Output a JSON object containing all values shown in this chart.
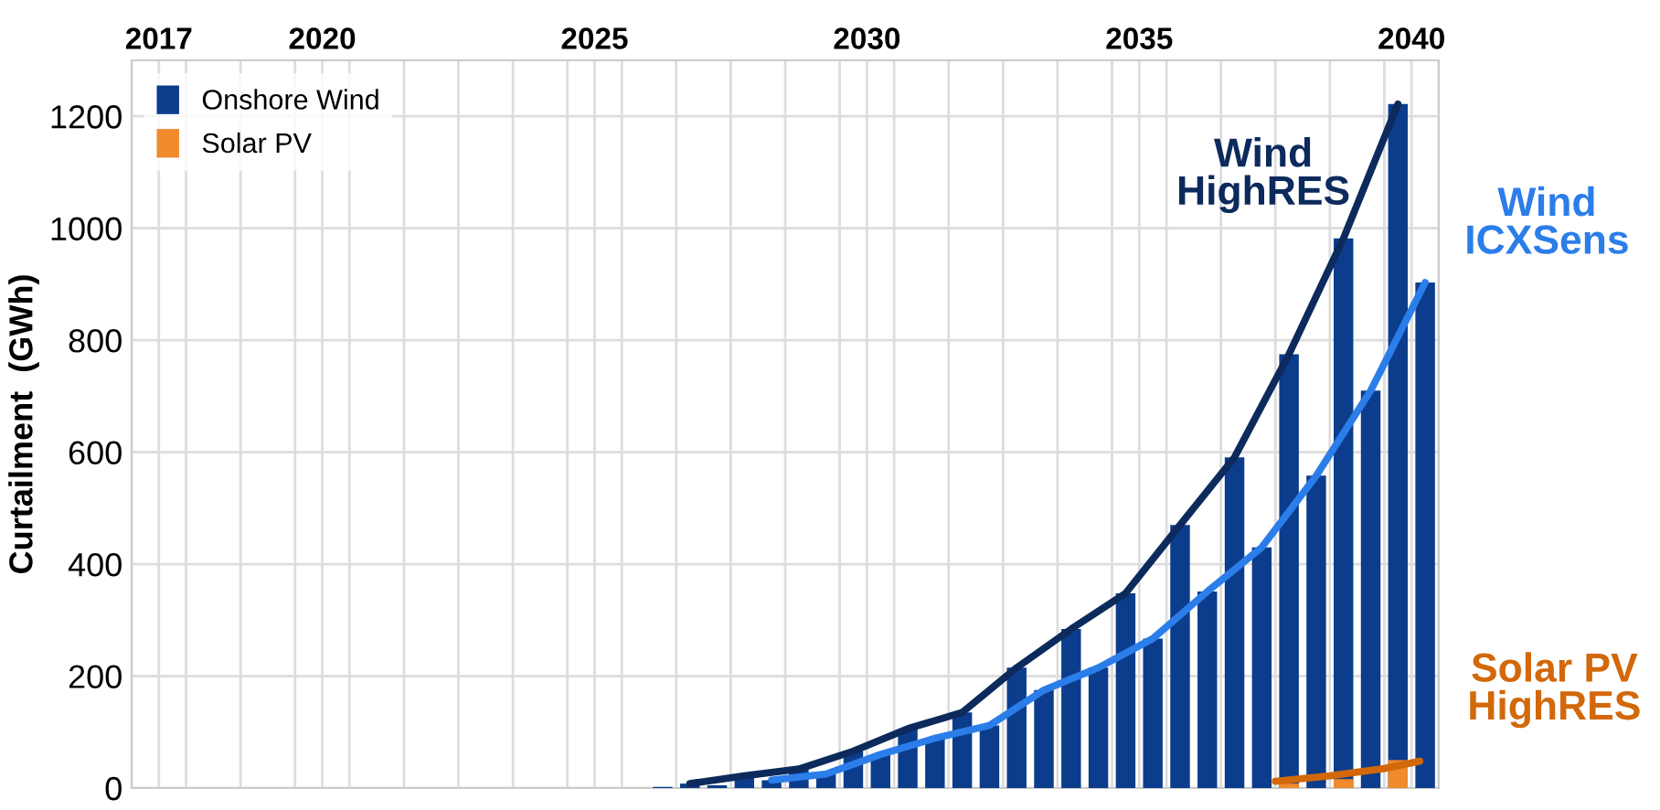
{
  "chart_data": {
    "type": "bar",
    "ylabel": "Curtailment  (GWh)",
    "xlim": [
      2016.5,
      2040.5
    ],
    "xticks": [
      2017,
      2020,
      2025,
      2030,
      2035,
      2040
    ],
    "ylim": [
      0,
      1300
    ],
    "yticks": [
      0,
      200,
      400,
      600,
      800,
      1000,
      1200
    ],
    "grid": true,
    "legend": "top left",
    "series": [
      {
        "name": "Onshore Wind",
        "color": "#0b3d8c",
        "x": [
          2025.75,
          2026.75,
          2027.75,
          2028.75,
          2029.75,
          2030.75,
          2031.75,
          2032.75,
          2033.75,
          2034.75,
          2035.75,
          2036.75,
          2037.75,
          2038.75,
          2039.75
        ],
        "values": [
          0,
          8,
          22,
          34,
          66,
          106,
          135,
          215,
          284,
          348,
          470,
          591,
          775,
          982,
          1222
        ]
      },
      {
        "color": "#0b3d8c",
        "x": [
          2026.25,
          2027.25,
          2028.25,
          2029.25,
          2030.25,
          2031.25,
          2032.25,
          2033.25,
          2034.25,
          2035.25,
          2036.25,
          2037.25,
          2038.25,
          2039.25,
          2040.25
        ],
        "values": [
          2,
          5,
          14,
          25,
          60,
          89,
          112,
          175,
          215,
          267,
          351,
          430,
          558,
          710,
          903
        ]
      },
      {
        "name": "Solar PV",
        "color": "#f08a2c",
        "x": [
          2037.75,
          2038.75,
          2039.75
        ],
        "values": [
          8,
          16,
          50
        ]
      },
      {
        "type": "line",
        "name": "Wind HighRES",
        "color": "#0d2a5c",
        "x": [
          2026.75,
          2027.75,
          2028.75,
          2029.75,
          2030.75,
          2031.75,
          2032.75,
          2033.75,
          2034.75,
          2035.75,
          2036.75,
          2037.75,
          2038.75,
          2039.75
        ],
        "values": [
          8,
          22,
          34,
          66,
          106,
          135,
          215,
          284,
          348,
          470,
          591,
          775,
          982,
          1222
        ]
      },
      {
        "type": "line",
        "name": "Wind ICXSens",
        "color": "#2b7de9",
        "x": [
          2028.25,
          2029.25,
          2030.25,
          2031.25,
          2032.25,
          2033.25,
          2034.25,
          2035.25,
          2036.25,
          2037.25,
          2038.25,
          2039.25,
          2040.25
        ],
        "values": [
          14,
          25,
          60,
          89,
          112,
          175,
          215,
          267,
          351,
          430,
          558,
          710,
          903
        ]
      },
      {
        "type": "line",
        "name": "Solar PV HighRES",
        "color": "#d2680a",
        "x": [
          2037.5,
          2038.5,
          2039.5,
          2040.15
        ],
        "values": [
          12,
          22,
          35,
          48
        ]
      }
    ]
  }
}
